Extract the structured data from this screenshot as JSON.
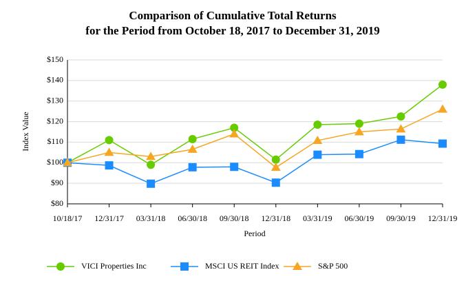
{
  "chart_data": {
    "type": "line",
    "title": [
      "Comparison of Cumulative Total Returns",
      "for the Period from October 18, 2017 to December 31, 2019"
    ],
    "x_label": "Period",
    "y_label": "Index Value",
    "categories": [
      "10/18/17",
      "12/31/17",
      "03/31/18",
      "06/30/18",
      "09/30/18",
      "12/31/18",
      "03/31/19",
      "06/30/19",
      "09/30/19",
      "12/31/19"
    ],
    "series": [
      {
        "name": "VICI Properties Inc",
        "color": "#66cc00",
        "marker": "circle",
        "values": [
          100,
          111,
          99,
          111.5,
          117,
          101.5,
          118.5,
          119,
          122.5,
          138
        ]
      },
      {
        "name": "MSCI US REIT Index",
        "color": "#1a8cff",
        "marker": "square",
        "values": [
          100,
          98.7,
          89.8,
          97.8,
          98,
          90.3,
          103.9,
          104.2,
          111.2,
          109.3
        ]
      },
      {
        "name": "S&P 500",
        "color": "#f5a623",
        "marker": "triangle",
        "values": [
          100,
          105,
          103,
          106.5,
          114,
          97.7,
          110.8,
          115,
          116.4,
          126
        ]
      }
    ],
    "ylim": [
      80,
      150
    ],
    "yticks": [
      {
        "value": 80,
        "label": "$80"
      },
      {
        "value": 90,
        "label": "$90"
      },
      {
        "value": 100,
        "label": "$100"
      },
      {
        "value": 110,
        "label": "$110"
      },
      {
        "value": 120,
        "label": "$120"
      },
      {
        "value": 130,
        "label": "$130"
      },
      {
        "value": 140,
        "label": "$140"
      },
      {
        "value": 150,
        "label": "$150"
      }
    ],
    "grid": true,
    "legend": "bottom"
  }
}
